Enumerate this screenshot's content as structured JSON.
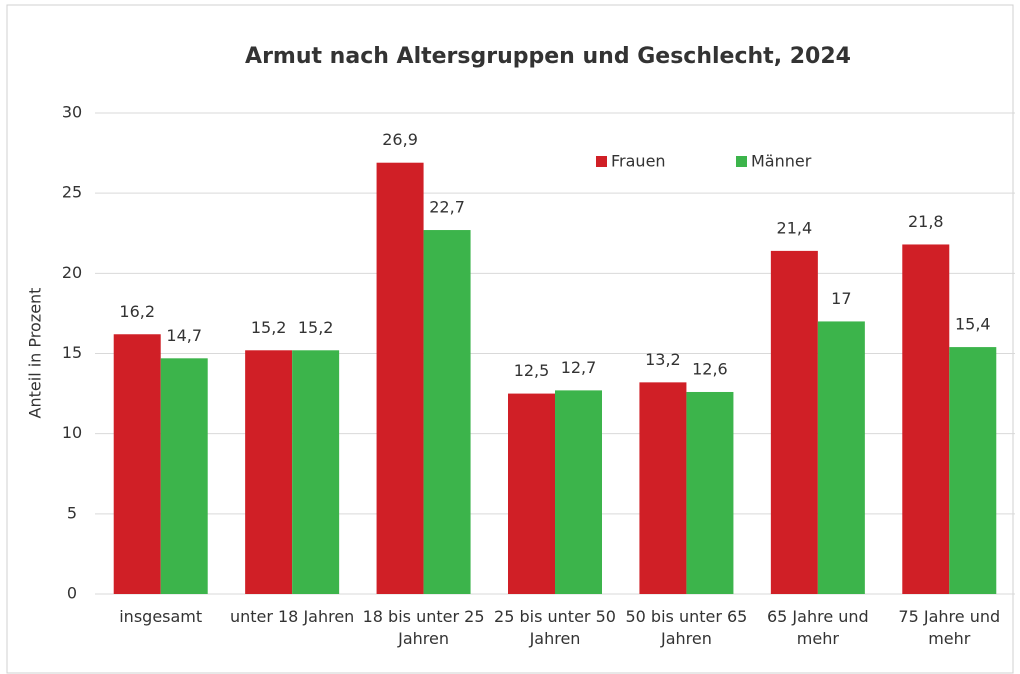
{
  "chart_data": {
    "type": "bar",
    "title": "Armut nach Altersgruppen und Geschlecht, 2024",
    "y_label": "Anteil in Prozent",
    "categories": [
      "insgesamt",
      "unter 18 Jahren",
      "18 bis unter 25 Jahren",
      "25 bis unter 50 Jahren",
      "50 bis unter 65 Jahren",
      "65 Jahre und mehr",
      "75 Jahre und mehr"
    ],
    "series": [
      {
        "name": "Frauen",
        "color": "#d01f26",
        "values": [
          16.2,
          15.2,
          26.9,
          12.5,
          13.2,
          21.4,
          21.8
        ],
        "value_labels": [
          "16,2",
          "15,2",
          "26,9",
          "12,5",
          "13,2",
          "21,4",
          "21,8"
        ]
      },
      {
        "name": "Männer",
        "color": "#3cb44b",
        "values": [
          14.7,
          15.2,
          22.7,
          12.7,
          12.6,
          17,
          15.4
        ],
        "value_labels": [
          "14,7",
          "15,2",
          "22,7",
          "12,7",
          "12,6",
          "17",
          "15,4"
        ]
      }
    ],
    "ylim": [
      0,
      30
    ],
    "yticks": [
      0,
      5,
      10,
      15,
      20,
      25,
      30
    ],
    "grid": true
  }
}
